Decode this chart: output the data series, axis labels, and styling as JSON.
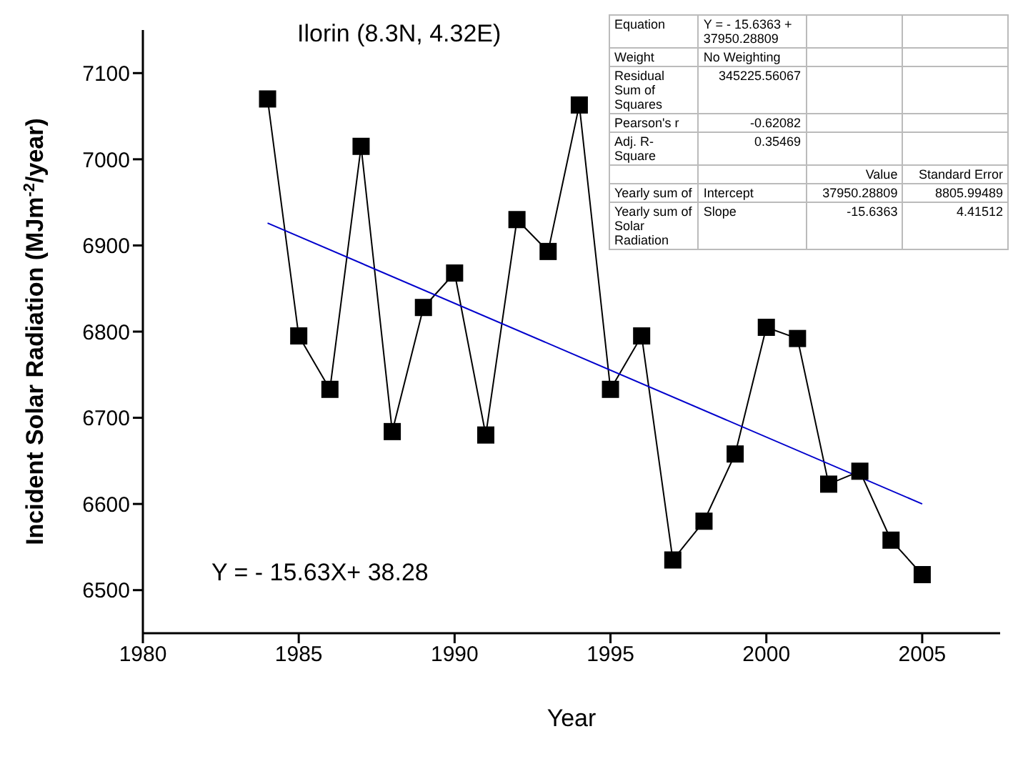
{
  "chart_data": {
    "type": "line",
    "title": "Ilorin (8.3N, 4.32E)",
    "xlabel": "Year",
    "ylabel": "Incident Solar Radiation (MJm$^{-2}$/year)",
    "x": [
      1984,
      1985,
      1986,
      1987,
      1988,
      1989,
      1990,
      1991,
      1992,
      1993,
      1994,
      1995,
      1996,
      1997,
      1998,
      1999,
      2000,
      2001,
      2002,
      2003,
      2004,
      2005
    ],
    "series": [
      {
        "color": "#000000",
        "marker": "square",
        "values": [
          7070,
          6795,
          6733,
          7015,
          6684,
          6828,
          6868,
          6680,
          6930,
          6893,
          7063,
          6733,
          6795,
          6535,
          6580,
          6658,
          6805,
          6792,
          6623,
          6638,
          6558,
          6518
        ]
      },
      {
        "type": "line",
        "color": "#0000cc",
        "marker": "none",
        "x": [
          1984,
          2005
        ],
        "values": [
          6926,
          6600
        ]
      }
    ],
    "xlim": [
      1980,
      2007.5
    ],
    "xticks": [
      1980,
      1985,
      1990,
      1995,
      2000,
      2005
    ],
    "ylim": [
      6450,
      7150
    ],
    "yticks": [
      6500,
      6600,
      6700,
      6800,
      6900,
      7000,
      7100
    ],
    "annotations": [
      "Y = - 15.63X+ 38.28",
      "Equation",
      "Y = - 15.6363 + 37950.28809",
      "Weight",
      "No Weighting",
      "Residual Sum of Squares",
      "345225.56067",
      "Pearson's r",
      "-0.62082",
      "Adj. R-Square",
      "0.35469",
      "Value",
      "Standard Error",
      "Yearly sum of",
      "Intercept",
      "37950.28809",
      "8805.99489",
      "Yearly sum of Solar Radiation",
      "Slope",
      "-15.6363",
      "4.41512"
    ]
  }
}
